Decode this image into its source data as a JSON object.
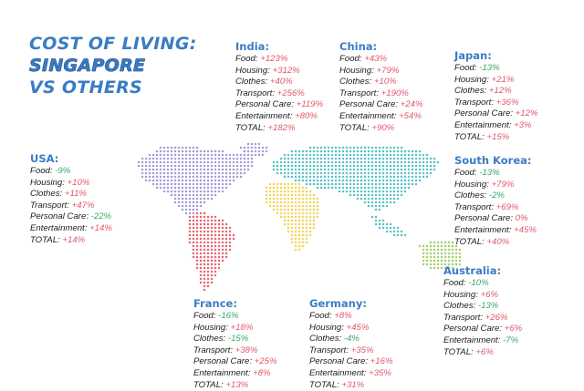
{
  "title": {
    "line1": "COST OF LIVING:",
    "line2": "SINGAPORE",
    "line3": "VS OTHERS"
  },
  "colors": {
    "title_blue": "#3a7cc4",
    "up_red": "#e0576b",
    "down_green": "#3aa866",
    "map_purple": "#a69bd6",
    "map_red": "#e5676f",
    "map_yellow": "#f2d35c",
    "map_teal": "#5ac1c6",
    "map_green": "#a5cf6b"
  },
  "countries": {
    "india": {
      "name": "India:",
      "rows": [
        {
          "label": "Food:",
          "value": "+123%",
          "dir": "up"
        },
        {
          "label": "Housing:",
          "value": "+312%",
          "dir": "up"
        },
        {
          "label": "Clothes:",
          "value": "+40%",
          "dir": "up"
        },
        {
          "label": "Transport:",
          "value": "+256%",
          "dir": "up"
        },
        {
          "label": "Personal Care:",
          "value": "+119%",
          "dir": "up"
        },
        {
          "label": "Entertainment:",
          "value": "+80%",
          "dir": "up"
        },
        {
          "label": "TOTAL:",
          "value": "+182%",
          "dir": "up"
        }
      ]
    },
    "china": {
      "name": "China:",
      "rows": [
        {
          "label": "Food:",
          "value": "+43%",
          "dir": "up"
        },
        {
          "label": "Housing:",
          "value": "+79%",
          "dir": "up"
        },
        {
          "label": "Clothes:",
          "value": "+10%",
          "dir": "up"
        },
        {
          "label": "Transport:",
          "value": "+190%",
          "dir": "up"
        },
        {
          "label": "Personal Care:",
          "value": "+24%",
          "dir": "up"
        },
        {
          "label": "Entertainment:",
          "value": "+54%",
          "dir": "up"
        },
        {
          "label": "TOTAL:",
          "value": "+90%",
          "dir": "up"
        }
      ]
    },
    "japan": {
      "name": "Japan:",
      "rows": [
        {
          "label": "Food:",
          "value": "-13%",
          "dir": "down"
        },
        {
          "label": "Housing:",
          "value": "+21%",
          "dir": "up"
        },
        {
          "label": "Clothes:",
          "value": "+12%",
          "dir": "up"
        },
        {
          "label": "Transport:",
          "value": "+36%",
          "dir": "up"
        },
        {
          "label": "Personal Care:",
          "value": "+12%",
          "dir": "up"
        },
        {
          "label": "Entertainment:",
          "value": "+3%",
          "dir": "up"
        },
        {
          "label": "TOTAL:",
          "value": "+15%",
          "dir": "up"
        }
      ]
    },
    "usa": {
      "name": "USA:",
      "rows": [
        {
          "label": "Food:",
          "value": "-9%",
          "dir": "down"
        },
        {
          "label": "Housing:",
          "value": "+10%",
          "dir": "up"
        },
        {
          "label": "Clothes:",
          "value": "+11%",
          "dir": "up"
        },
        {
          "label": "Transport:",
          "value": "+47%",
          "dir": "up"
        },
        {
          "label": "Personal Care:",
          "value": "-22%",
          "dir": "down"
        },
        {
          "label": "Entertainment:",
          "value": "+14%",
          "dir": "up"
        },
        {
          "label": "TOTAL:",
          "value": "+14%",
          "dir": "up"
        }
      ]
    },
    "south_korea": {
      "name": "South Korea:",
      "rows": [
        {
          "label": "Food:",
          "value": "-13%",
          "dir": "down"
        },
        {
          "label": "Housing:",
          "value": "+79%",
          "dir": "up"
        },
        {
          "label": "Clothes:",
          "value": "-2%",
          "dir": "down"
        },
        {
          "label": "Transport:",
          "value": "+69%",
          "dir": "up"
        },
        {
          "label": "Personal Care:",
          "value": "0%",
          "dir": "zero"
        },
        {
          "label": "Entertainment:",
          "value": "+45%",
          "dir": "up"
        },
        {
          "label": "TOTAL:",
          "value": "+40%",
          "dir": "up"
        }
      ]
    },
    "australia": {
      "name": "Australia:",
      "rows": [
        {
          "label": "Food:",
          "value": "-10%",
          "dir": "down"
        },
        {
          "label": "Housing:",
          "value": "+6%",
          "dir": "up"
        },
        {
          "label": "Clothes:",
          "value": "-13%",
          "dir": "down"
        },
        {
          "label": "Transport:",
          "value": "+26%",
          "dir": "up"
        },
        {
          "label": "Personal Care:",
          "value": "+6%",
          "dir": "up"
        },
        {
          "label": "Entertainment:",
          "value": "-7%",
          "dir": "down"
        },
        {
          "label": "TOTAL:",
          "value": "+6%",
          "dir": "up"
        }
      ]
    },
    "france": {
      "name": "France:",
      "rows": [
        {
          "label": "Food:",
          "value": "-16%",
          "dir": "down"
        },
        {
          "label": "Housing:",
          "value": "+18%",
          "dir": "up"
        },
        {
          "label": "Clothes:",
          "value": "-15%",
          "dir": "down"
        },
        {
          "label": "Transport:",
          "value": "+38%",
          "dir": "up"
        },
        {
          "label": "Personal Care:",
          "value": "+25%",
          "dir": "up"
        },
        {
          "label": "Entertainment:",
          "value": "+8%",
          "dir": "up"
        },
        {
          "label": "TOTAL:",
          "value": "+13%",
          "dir": "up"
        }
      ]
    },
    "germany": {
      "name": "Germany:",
      "rows": [
        {
          "label": "Food:",
          "value": "+8%",
          "dir": "up"
        },
        {
          "label": "Housing:",
          "value": "+45%",
          "dir": "up"
        },
        {
          "label": "Clothes:",
          "value": "-4%",
          "dir": "down"
        },
        {
          "label": "Transport:",
          "value": "+35%",
          "dir": "up"
        },
        {
          "label": "Personal Care:",
          "value": "+16%",
          "dir": "up"
        },
        {
          "label": "Entertainment:",
          "value": "+35%",
          "dir": "up"
        },
        {
          "label": "TOTAL:",
          "value": "+31%",
          "dir": "up"
        }
      ]
    }
  }
}
